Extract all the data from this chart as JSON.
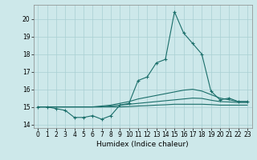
{
  "xlabel": "Humidex (Indice chaleur)",
  "background_color": "#cde8ea",
  "grid_color": "#a8cfd2",
  "line_color": "#1a6e6a",
  "xlim": [
    -0.5,
    23.5
  ],
  "ylim": [
    13.8,
    20.8
  ],
  "yticks": [
    14,
    15,
    16,
    17,
    18,
    19,
    20
  ],
  "xticks": [
    0,
    1,
    2,
    3,
    4,
    5,
    6,
    7,
    8,
    9,
    10,
    11,
    12,
    13,
    14,
    15,
    16,
    17,
    18,
    19,
    20,
    21,
    22,
    23
  ],
  "series_main": [
    15.0,
    15.0,
    14.9,
    14.8,
    14.4,
    14.4,
    14.5,
    14.3,
    14.5,
    15.1,
    15.2,
    16.5,
    16.7,
    17.5,
    17.7,
    20.4,
    19.2,
    18.6,
    18.0,
    15.9,
    15.4,
    15.5,
    15.3,
    15.3
  ],
  "series_smooth": [
    [
      15.0,
      15.0,
      15.0,
      15.0,
      15.0,
      15.0,
      15.0,
      15.05,
      15.1,
      15.2,
      15.3,
      15.45,
      15.55,
      15.65,
      15.75,
      15.85,
      15.95,
      16.0,
      15.9,
      15.7,
      15.5,
      15.4,
      15.3,
      15.3
    ],
    [
      15.0,
      15.0,
      15.0,
      15.0,
      15.0,
      15.0,
      15.0,
      15.0,
      15.05,
      15.1,
      15.15,
      15.2,
      15.25,
      15.3,
      15.35,
      15.4,
      15.45,
      15.5,
      15.48,
      15.38,
      15.3,
      15.28,
      15.25,
      15.25
    ],
    [
      15.0,
      15.0,
      15.0,
      15.0,
      15.0,
      15.0,
      15.0,
      15.0,
      15.0,
      15.0,
      15.02,
      15.05,
      15.07,
      15.1,
      15.12,
      15.15,
      15.15,
      15.15,
      15.15,
      15.13,
      15.1,
      15.1,
      15.1,
      15.1
    ]
  ],
  "marker": "+",
  "marker_size": 3.5,
  "linewidth": 0.8,
  "tick_fontsize": 5.5,
  "xlabel_fontsize": 6.5
}
